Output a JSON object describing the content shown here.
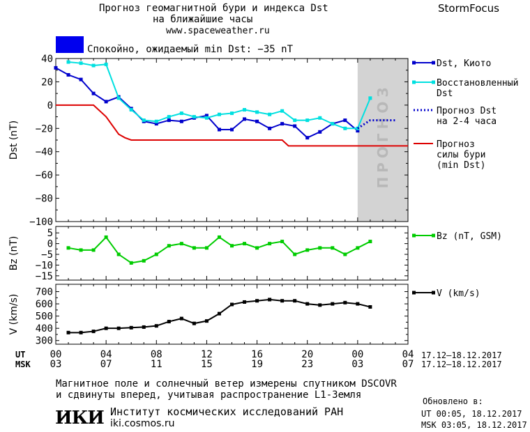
{
  "header": {
    "title_line1": "Прогноз геомагнитной бури и индекса Dst",
    "title_line2": "на ближайшие часы",
    "url": "www.spaceweather.ru",
    "brand": "StormFocus"
  },
  "status": {
    "text": "Спокойно, ожидаемый min Dst: −35 nT",
    "color": "#0000ee"
  },
  "time_axis": {
    "ut_label": "UT",
    "msk_label": "MSK",
    "ut_ticks": [
      "00",
      "04",
      "08",
      "12",
      "16",
      "20",
      "00",
      "04"
    ],
    "msk_ticks": [
      "03",
      "07",
      "11",
      "15",
      "19",
      "23",
      "03",
      "07"
    ],
    "ut_range": "17.12–18.12.2017",
    "msk_range": "17.12–18.12.2017"
  },
  "chart_data": [
    {
      "type": "line",
      "ylabel": "Dst (nT)",
      "ylim": [
        -100,
        40
      ],
      "yticks": [
        "40",
        "20",
        "0",
        "−20",
        "−40",
        "−60",
        "−80",
        "−100"
      ],
      "xlim": [
        0,
        28
      ],
      "forecast_band": {
        "x": [
          24,
          28
        ],
        "label": "ПРОГНОЗ",
        "color": "#d3d3d3"
      },
      "series": [
        {
          "name": "Dst, Киото",
          "color": "#0000cc",
          "marker": "square",
          "x": [
            0,
            1,
            2,
            3,
            4,
            5,
            6,
            7,
            8,
            9,
            10,
            11,
            12,
            13,
            14,
            15,
            16,
            17,
            18,
            19,
            20,
            21,
            22,
            23,
            24
          ],
          "values": [
            32,
            26,
            22,
            10,
            3,
            7,
            -3,
            -14,
            -16,
            -13,
            -14,
            -11,
            -9,
            -21,
            -21,
            -12,
            -14,
            -20,
            -16,
            -18,
            -28,
            -23,
            -16,
            -13,
            -22
          ]
        },
        {
          "name": "Восстановленный Dst",
          "color": "#00e0e0",
          "marker": "square",
          "x": [
            1,
            2,
            3,
            4,
            5,
            6,
            7,
            8,
            9,
            10,
            11,
            12,
            13,
            14,
            15,
            16,
            17,
            18,
            19,
            20,
            21,
            22,
            23,
            24,
            25
          ],
          "values": [
            37,
            36,
            34,
            35,
            6,
            -4,
            -13,
            -14,
            -10,
            -7,
            -10,
            -11,
            -8,
            -7,
            -4,
            -6,
            -8,
            -5,
            -13,
            -13,
            -11,
            -16,
            -20,
            -20,
            6
          ]
        },
        {
          "name": "Прогноз Dst на 2-4 часа",
          "color": "#0000cc",
          "style": "dotted",
          "x": [
            24,
            25,
            26,
            27
          ],
          "values": [
            -20,
            -13,
            -13,
            -13
          ]
        },
        {
          "name": "Прогноз силы бури (min Dst)",
          "color": "#dd0000",
          "style": "solid",
          "x": [
            0,
            3,
            4,
            5,
            5.5,
            6,
            18,
            18.5,
            28
          ],
          "values": [
            0,
            0,
            -10,
            -25,
            -28,
            -30,
            -30,
            -35,
            -35
          ]
        }
      ]
    },
    {
      "type": "line",
      "ylabel": "Bz (nT)",
      "ylim": [
        -17,
        8
      ],
      "yticks": [
        "5",
        "0",
        "−5",
        "−10",
        "−15"
      ],
      "xlim": [
        0,
        28
      ],
      "series": [
        {
          "name": "Bz (nT, GSM)",
          "color": "#00cc00",
          "marker": "square",
          "x": [
            1,
            2,
            3,
            4,
            5,
            6,
            7,
            8,
            9,
            10,
            11,
            12,
            13,
            14,
            15,
            16,
            17,
            18,
            19,
            20,
            21,
            22,
            23,
            24,
            25
          ],
          "values": [
            -2,
            -3,
            -3,
            3,
            -5,
            -9,
            -8,
            -5,
            -1,
            0,
            -2,
            -2,
            3,
            -1,
            0,
            -2,
            0,
            1,
            -5,
            -3,
            -2,
            -2,
            -5,
            -2,
            1
          ]
        }
      ]
    },
    {
      "type": "line",
      "ylabel": "V (km/s)",
      "ylim": [
        270,
        760
      ],
      "yticks": [
        "700",
        "600",
        "500",
        "400",
        "300"
      ],
      "xlim": [
        0,
        28
      ],
      "series": [
        {
          "name": "V (km/s)",
          "color": "#000000",
          "marker": "square",
          "x": [
            1,
            2,
            3,
            4,
            5,
            6,
            7,
            8,
            9,
            10,
            11,
            12,
            13,
            14,
            15,
            16,
            17,
            18,
            19,
            20,
            21,
            22,
            23,
            24,
            25
          ],
          "values": [
            365,
            365,
            375,
            400,
            400,
            405,
            410,
            420,
            455,
            480,
            440,
            460,
            520,
            595,
            615,
            625,
            635,
            625,
            625,
            600,
            590,
            600,
            610,
            600,
            575
          ]
        }
      ]
    }
  ],
  "footer": {
    "line1": "Магнитное поле и солнечный ветер измерены спутником DSCOVR",
    "line2": "и сдвинуты вперед, учитывая распространение L1-Земля",
    "institute": "Институт космических исследований РАН",
    "institute_url": "iki.cosmos.ru",
    "logo_text": "ИКИ",
    "updated_label": "Обновлено в:",
    "updated_ut": "UT   00:05, 18.12.2017",
    "updated_msk": "MSK 03:05, 18.12.2017"
  }
}
